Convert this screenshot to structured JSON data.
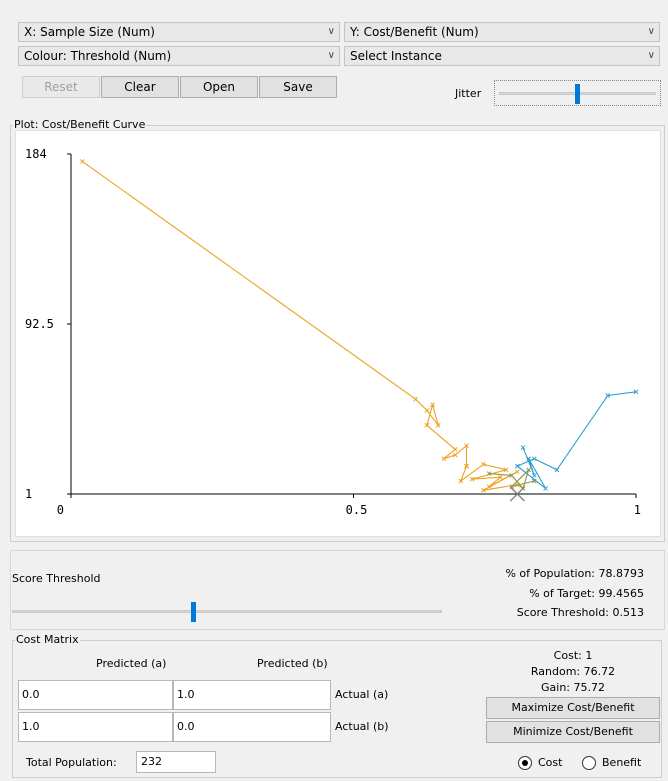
{
  "selectors": {
    "x_axis": "X: Sample Size (Num)",
    "y_axis": "Y: Cost/Benefit (Num)",
    "colour": "Colour: Threshold (Num)",
    "instance": "Select Instance"
  },
  "buttons": {
    "reset": "Reset",
    "clear": "Clear",
    "open": "Open",
    "save": "Save"
  },
  "jitter": {
    "label": "Jitter",
    "value": 0.5
  },
  "plot": {
    "group_title": "Plot: Cost/Benefit Curve",
    "colors": {
      "curve_orange": "#f0a020",
      "curve_teal": "#2e9ed0",
      "curve_olive": "#8a9a40",
      "marker": "#808080"
    }
  },
  "chart_data": {
    "type": "line",
    "title": "Cost/Benefit Curve",
    "xlabel": "Sample Size",
    "ylabel": "Cost/Benefit",
    "xlim": [
      0,
      1
    ],
    "ylim": [
      1,
      184
    ],
    "x_ticks": [
      "0",
      "0.5",
      "1"
    ],
    "y_ticks": [
      "184",
      "92.5",
      "1"
    ],
    "colour_by": "Threshold",
    "series": [
      {
        "color": "#f0a020",
        "x": [
          0.02,
          0.61,
          0.63,
          0.65,
          0.64,
          0.63,
          0.68,
          0.66,
          0.68,
          0.7,
          0.7
        ],
        "y": [
          180,
          52,
          46,
          38,
          49,
          38,
          25,
          20,
          22,
          27,
          16
        ]
      },
      {
        "color": "#f0a020",
        "x": [
          0.7,
          0.69,
          0.73,
          0.77,
          0.71,
          0.76,
          0.74,
          0.79,
          0.73,
          0.79,
          0.8
        ],
        "y": [
          16,
          8,
          17,
          14,
          9,
          10,
          5,
          13,
          3,
          6,
          4
        ]
      },
      {
        "color": "#8a9a40",
        "x": [
          0.74,
          0.78,
          0.8,
          0.81,
          0.78,
          0.82
        ],
        "y": [
          12,
          11,
          4,
          14,
          5,
          8
        ]
      },
      {
        "color": "#2e9ed0",
        "x": [
          0.8,
          0.82,
          0.81,
          0.84,
          0.79,
          0.82,
          0.86,
          0.95,
          1.0
        ],
        "y": [
          26,
          11,
          20,
          4,
          16,
          20,
          14,
          54,
          56
        ]
      }
    ]
  },
  "threshold_panel": {
    "label": "Score Threshold",
    "slider_value": 0.513,
    "pct_population": "% of Population: 78.8793",
    "pct_target": "% of Target: 99.4565",
    "score_threshold": "Score Threshold: 0.513"
  },
  "cost_matrix": {
    "title": "Cost Matrix",
    "predicted_a": "Predicted (a)",
    "predicted_b": "Predicted (b)",
    "actual_a": "Actual (a)",
    "actual_b": "Actual (b)",
    "cells": [
      [
        "0.0",
        "1.0"
      ],
      [
        "1.0",
        "0.0"
      ]
    ],
    "cost": "Cost: 1",
    "random": "Random: 76.72",
    "gain": "Gain: 75.72",
    "maximize": "Maximize Cost/Benefit",
    "minimize": "Minimize Cost/Benefit",
    "total_population_label": "Total Population:",
    "total_population_value": "232",
    "radio_cost": "Cost",
    "radio_benefit": "Benefit",
    "selected_radio": "Cost"
  }
}
